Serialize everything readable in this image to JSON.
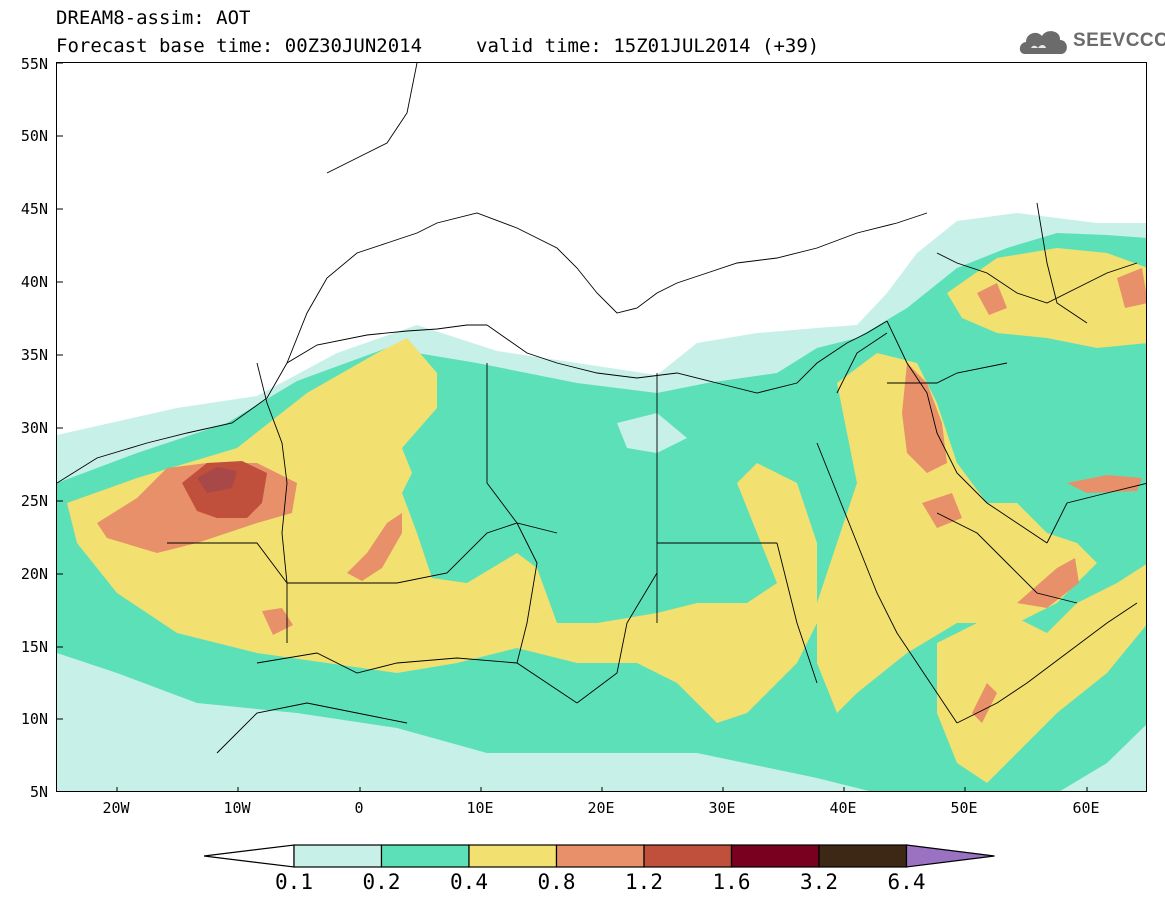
{
  "header": {
    "title": "DREAM8-assim: AOT",
    "base_time": "Forecast base time: 00Z30JUN2014",
    "valid_time": "valid time: 15Z01JUL2014 (+39)"
  },
  "logo": {
    "icon": "cloud-icon",
    "text": "SEEVCCC"
  },
  "map": {
    "lat_labels": [
      "55N",
      "50N",
      "45N",
      "40N",
      "35N",
      "30N",
      "25N",
      "20N",
      "15N",
      "10N",
      "5N"
    ],
    "lon_labels": [
      "20W",
      "10W",
      "0",
      "10E",
      "20E",
      "30E",
      "40E",
      "50E",
      "60E"
    ]
  },
  "legend": {
    "levels": [
      "0.1",
      "0.2",
      "0.4",
      "0.8",
      "1.2",
      "1.6",
      "3.2",
      "6.4"
    ],
    "colors": [
      "#c6f0e8",
      "#5ce0b8",
      "#f2e070",
      "#e8906a",
      "#c0503c",
      "#7a0020",
      "#3d2816",
      "#9b72c2"
    ]
  },
  "palette": {
    "lt": "#c6f0e8",
    "gr": "#5ce0b8",
    "ye": "#f2e070",
    "or": "#e8906a",
    "rd": "#c0503c",
    "dk": "#a84848"
  }
}
